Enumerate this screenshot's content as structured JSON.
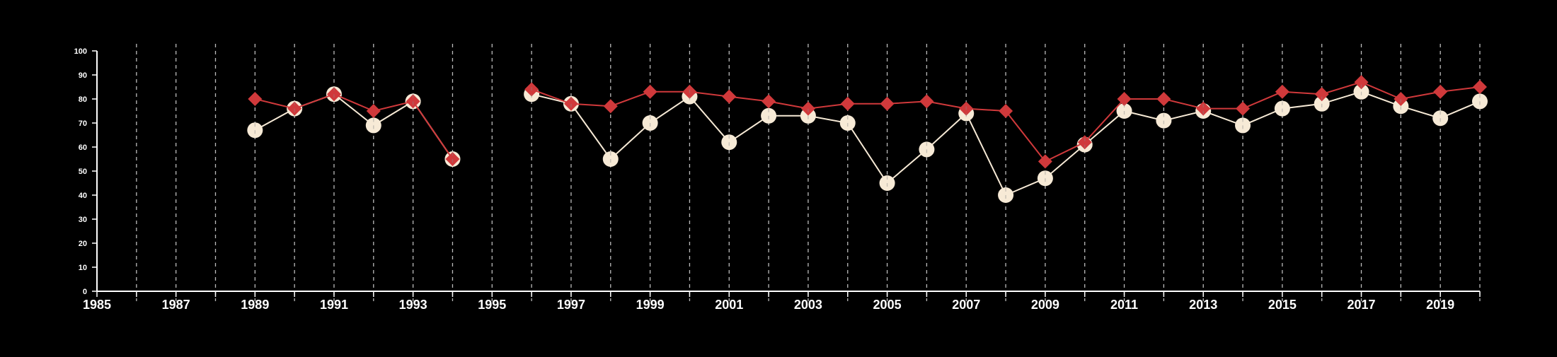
{
  "chart_data": {
    "type": "line",
    "x": [
      1989,
      1990,
      1991,
      1992,
      1993,
      1994,
      1995,
      1996,
      1997,
      1998,
      1999,
      2000,
      2001,
      2002,
      2003,
      2004,
      2005,
      2006,
      2007,
      2008,
      2009,
      2010,
      2011,
      2012,
      2013,
      2014,
      2015,
      2016,
      2017,
      2018,
      2019,
      2020
    ],
    "series": [
      {
        "marker": "diamond",
        "color": "#d0393b",
        "values": [
          80,
          76,
          82,
          75,
          79,
          55,
          null,
          84,
          78,
          77,
          83,
          83,
          81,
          79,
          76,
          78,
          78,
          79,
          76,
          75,
          54,
          62,
          80,
          80,
          76,
          76,
          83,
          82,
          87,
          80,
          83,
          85
        ]
      },
      {
        "marker": "circle",
        "color": "#f7ead6",
        "values": [
          67,
          76,
          82,
          69,
          79,
          55,
          null,
          82,
          78,
          55,
          70,
          81,
          62,
          73,
          73,
          70,
          45,
          59,
          74,
          40,
          47,
          61,
          75,
          71,
          75,
          69,
          76,
          78,
          83,
          77,
          72,
          79
        ]
      }
    ],
    "xlim": [
      1985,
      2020
    ],
    "ylim": [
      0,
      100
    ],
    "x_tick_labels": [
      "1985",
      "1987",
      "1989",
      "1991",
      "1993",
      "1995",
      "1997",
      "1999",
      "2001",
      "2003",
      "2005",
      "2007",
      "2009",
      "2011",
      "2013",
      "2015",
      "2017",
      "2019"
    ],
    "y_tick_labels": [
      "0",
      "10",
      "20",
      "30",
      "40",
      "50",
      "60",
      "70",
      "80",
      "90",
      "100"
    ],
    "grid": "vertical dashed at each year",
    "legend": "none",
    "title": "",
    "xlabel": "",
    "ylabel": "",
    "background": "#000000",
    "axis_color": "#ffffff",
    "grid_color": "#bbbbbb"
  }
}
